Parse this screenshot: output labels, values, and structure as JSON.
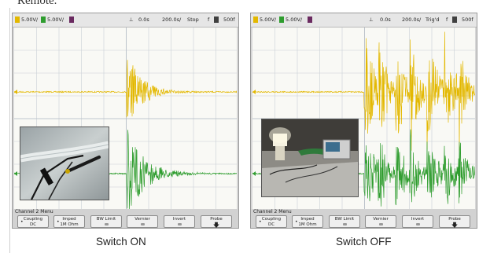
{
  "top_text": "Remote.",
  "panels": [
    {
      "status": {
        "ch1_scale": "5.00V/",
        "ch2_scale": "5.00V/",
        "time": "0.0s",
        "timebase": "200.0s/",
        "run_state": "Stop",
        "memory": "500f"
      },
      "menu": {
        "title": "Channel 2  Menu",
        "keys": [
          {
            "label": "Coupling",
            "value": "DC"
          },
          {
            "label": "Imped",
            "value": "1M Ohm"
          },
          {
            "label": "BW Limit",
            "value": ""
          },
          {
            "label": "Vernier",
            "value": ""
          },
          {
            "label": "Invert",
            "value": ""
          },
          {
            "label": "Probe",
            "value": ""
          }
        ]
      },
      "caption": "Switch ON"
    },
    {
      "status": {
        "ch1_scale": "5.00V/",
        "ch2_scale": "5.00V/",
        "time": "0.0s",
        "timebase": "200.0s/",
        "run_state": "Trig'd",
        "memory": "500f"
      },
      "menu": {
        "title": "Channel 2  Menu",
        "keys": [
          {
            "label": "Coupling",
            "value": "DC"
          },
          {
            "label": "Imped",
            "value": "1M Ohm"
          },
          {
            "label": "BW Limit",
            "value": ""
          },
          {
            "label": "Vernier",
            "value": ""
          },
          {
            "label": "Invert",
            "value": ""
          },
          {
            "label": "Probe",
            "value": ""
          }
        ]
      },
      "caption": "Switch OFF"
    }
  ],
  "colors": {
    "ch1": "#e3b800",
    "ch2": "#2f9d2f",
    "grid": "#c9cfd6",
    "screen": "#f9f9f5"
  },
  "icons": {
    "probe": "arrow-down-icon",
    "trigger": "trigger-edge-icon"
  }
}
